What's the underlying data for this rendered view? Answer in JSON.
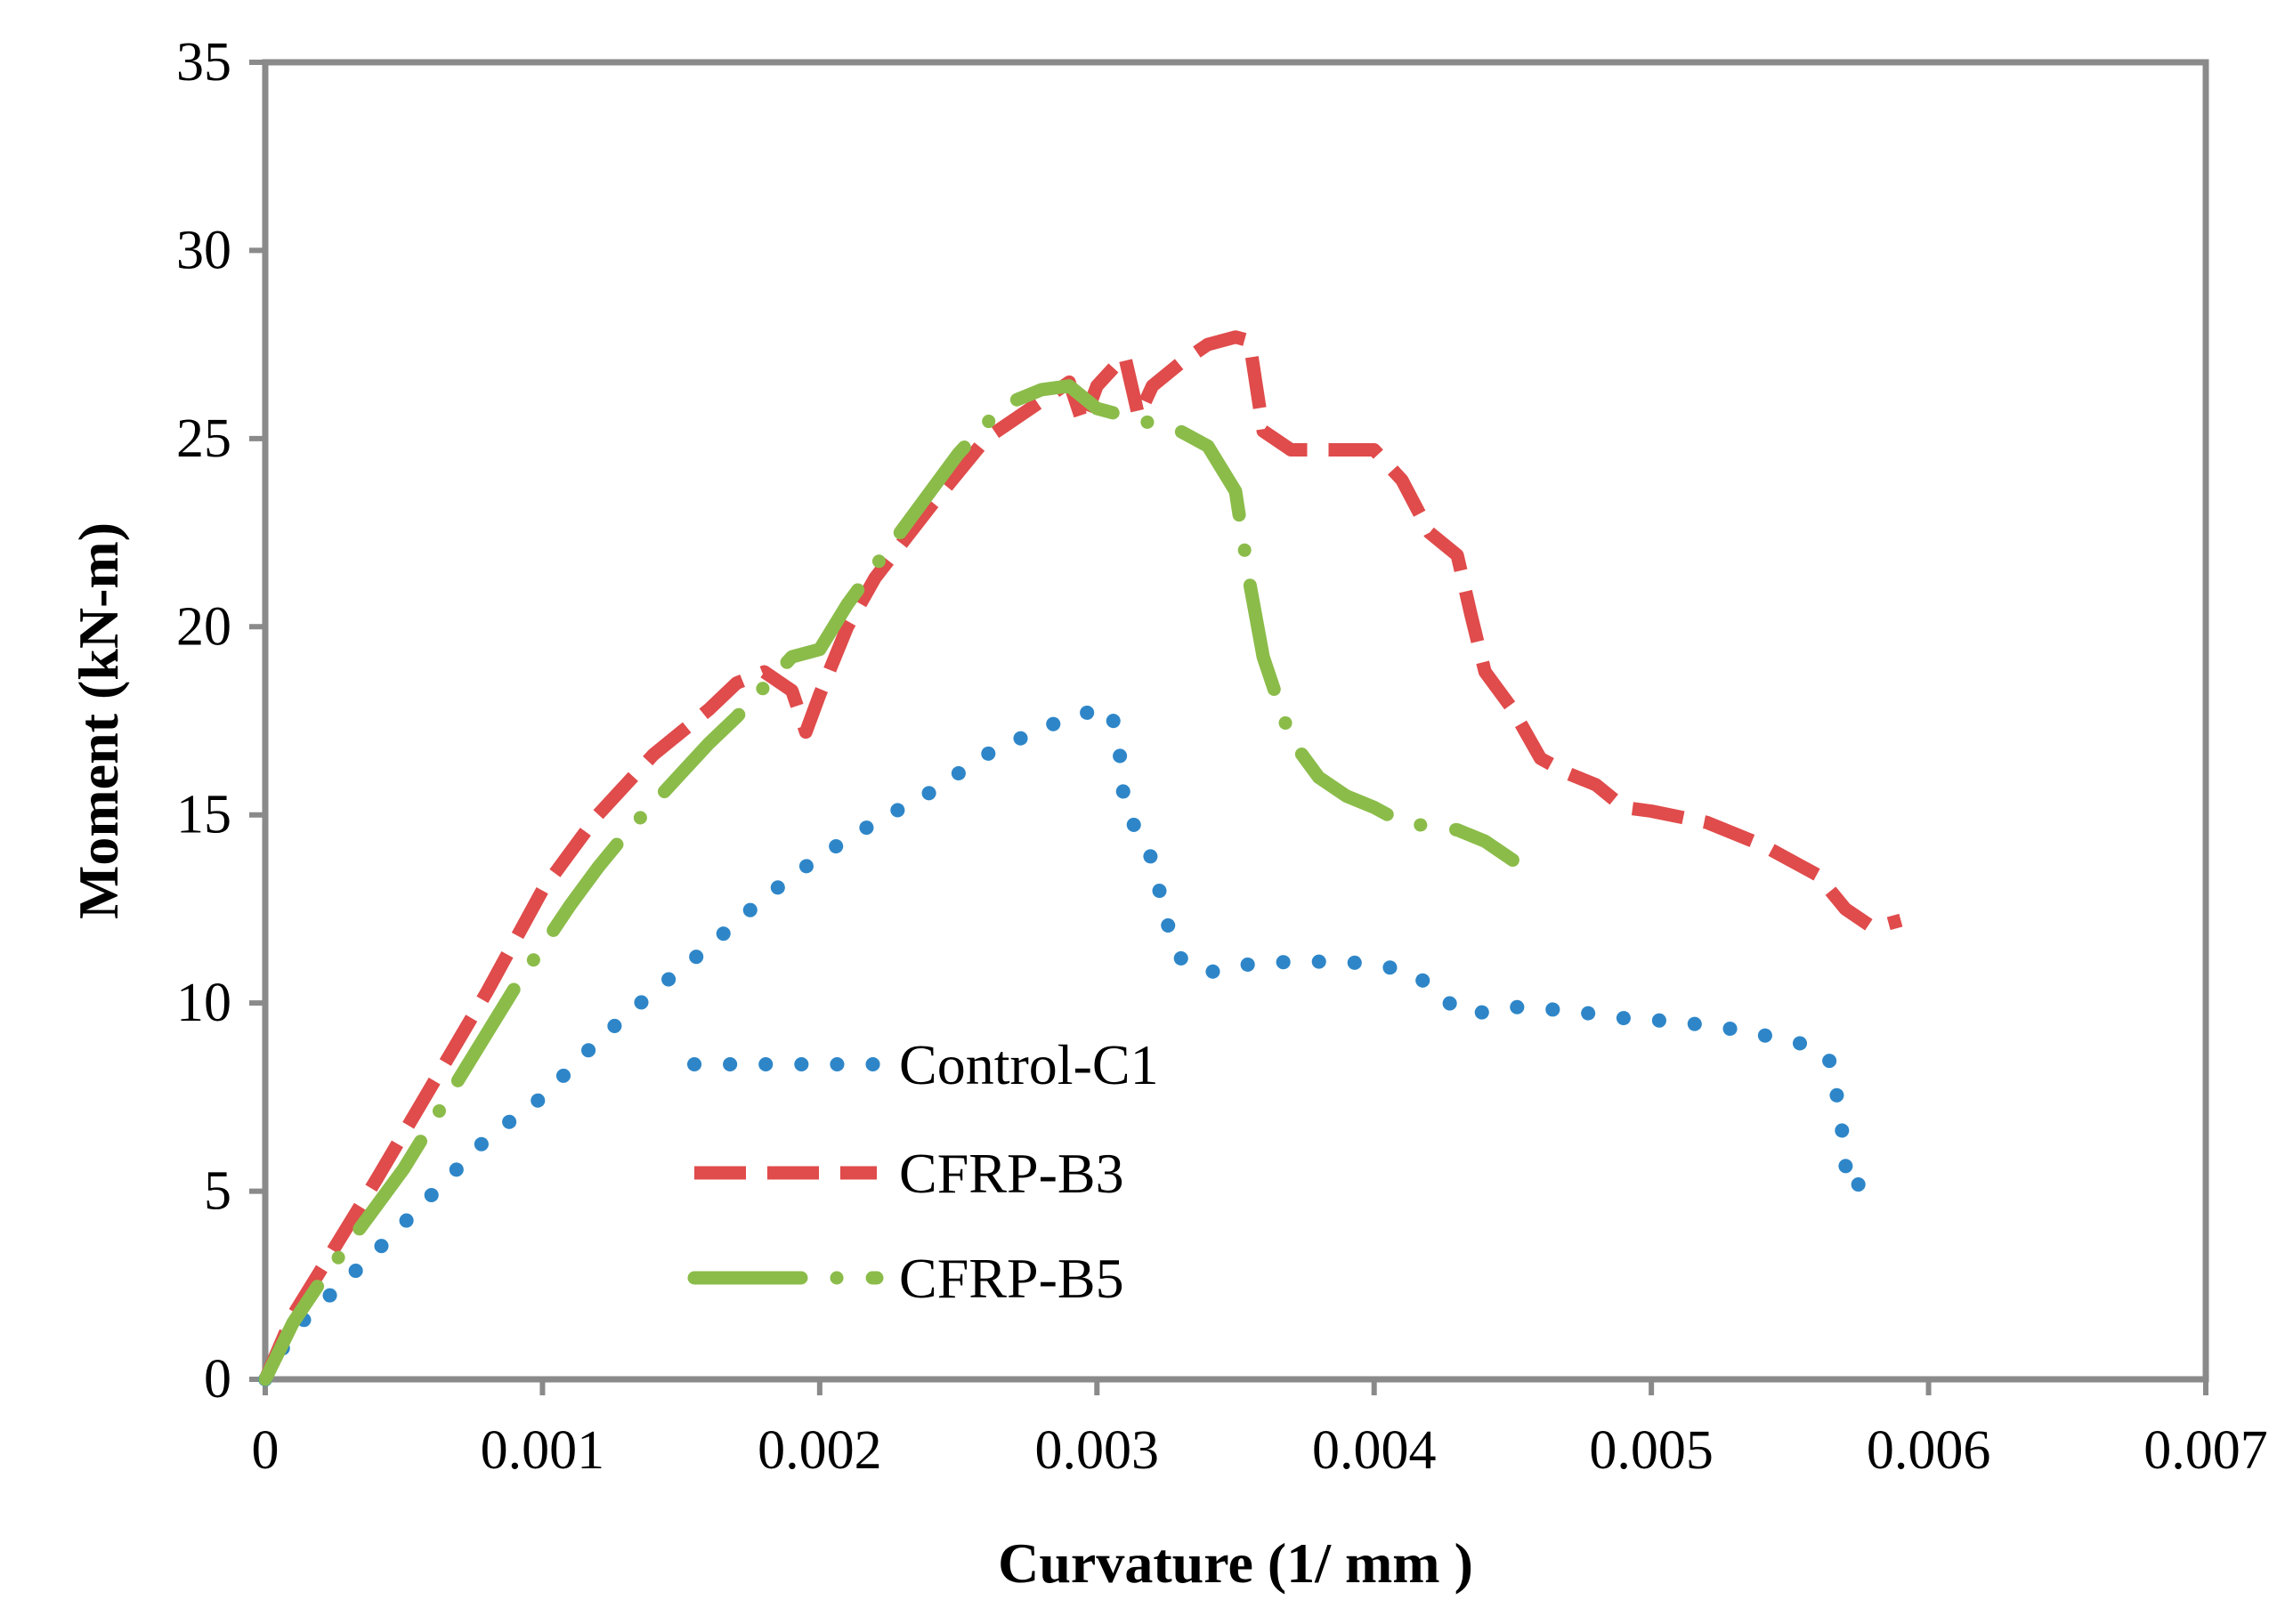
{
  "chart_data": {
    "type": "line",
    "title": "",
    "xlabel": "Curvature (1/ mm )",
    "ylabel": "Moment  (kN-m)",
    "xlim": [
      0,
      0.007
    ],
    "ylim": [
      0,
      35
    ],
    "xticks": [
      0,
      0.001,
      0.002,
      0.003,
      0.004,
      0.005,
      0.006,
      0.007
    ],
    "xtick_labels": [
      "0",
      "0.001",
      "0.002",
      "0.003",
      "0.004",
      "0.005",
      "0.006",
      "0.007"
    ],
    "yticks": [
      0,
      5,
      10,
      15,
      20,
      25,
      30,
      35
    ],
    "ytick_labels": [
      "0",
      "5",
      "10",
      "15",
      "20",
      "25",
      "30",
      "35"
    ],
    "grid": false,
    "legend_position": "bottom-left-center",
    "series": [
      {
        "name": "Control-C1",
        "color": "#2E86C8",
        "style": "dotted",
        "x": [
          0,
          0.0001,
          0.0002,
          0.0004,
          0.0006,
          0.0008,
          0.001,
          0.0012,
          0.0014,
          0.0016,
          0.0018,
          0.002,
          0.0022,
          0.0024,
          0.0026,
          0.0028,
          0.00295,
          0.00305,
          0.00308,
          0.0031,
          0.0032,
          0.00325,
          0.0033,
          0.0034,
          0.0035,
          0.0037,
          0.0039,
          0.0041,
          0.0042,
          0.0043,
          0.00435,
          0.0045,
          0.0047,
          0.0049,
          0.0051,
          0.0053,
          0.0055,
          0.0056,
          0.00565,
          0.00567,
          0.00569,
          0.0057,
          0.00572,
          0.00575,
          0.0057
        ],
        "y": [
          0,
          1.3,
          2,
          3.4,
          4.9,
          6.4,
          7.5,
          9,
          10.3,
          11.5,
          12.8,
          13.9,
          14.8,
          15.6,
          16.6,
          17.3,
          17.7,
          17.8,
          16.8,
          15.2,
          13.8,
          12.2,
          11.2,
          10.8,
          11,
          11.1,
          11.1,
          10.9,
          10.5,
          9.8,
          9.7,
          9.9,
          9.8,
          9.6,
          9.5,
          9.3,
          9.0,
          8.8,
          8.4,
          7.5,
          6.5,
          5.7,
          5.0,
          5.2,
          4.4
        ]
      },
      {
        "name": "CFRP-B3",
        "color": "#E04B4B",
        "style": "dashed",
        "x": [
          0,
          0.0001,
          0.0002,
          0.0004,
          0.0006,
          0.0008,
          0.001,
          0.0012,
          0.0014,
          0.0016,
          0.0017,
          0.0018,
          0.0019,
          0.00195,
          0.002,
          0.0021,
          0.0022,
          0.0024,
          0.0026,
          0.0028,
          0.0029,
          0.00295,
          0.003,
          0.0031,
          0.00315,
          0.0032,
          0.0033,
          0.0034,
          0.0035,
          0.00355,
          0.0036,
          0.0037,
          0.0038,
          0.0039,
          0.004,
          0.0041,
          0.0042,
          0.0043,
          0.00435,
          0.0044,
          0.0045,
          0.0046,
          0.0047,
          0.0048,
          0.0049,
          0.005,
          0.0052,
          0.0054,
          0.0056,
          0.0057,
          0.0058,
          0.0059
        ],
        "y": [
          0,
          1.7,
          2.9,
          5.3,
          7.8,
          10.3,
          13.0,
          15.0,
          16.6,
          17.8,
          18.5,
          18.8,
          18.3,
          17.2,
          18.2,
          20.0,
          21.3,
          23.2,
          25.0,
          26.0,
          26.5,
          25.4,
          26.4,
          27.2,
          25.6,
          26.4,
          27.0,
          27.5,
          27.7,
          27.6,
          25.2,
          24.7,
          24.7,
          24.7,
          24.7,
          23.9,
          22.5,
          21.9,
          20.3,
          18.8,
          17.8,
          16.5,
          16.1,
          15.8,
          15.2,
          15.1,
          14.8,
          14.2,
          13.4,
          12.5,
          12.0,
          12.2
        ]
      },
      {
        "name": "CFRP-B5",
        "color": "#8BBC4A",
        "style": "dash-dot",
        "x": [
          0,
          0.0001,
          0.0002,
          0.0003,
          0.0004,
          0.0005,
          0.0006,
          0.0007,
          0.0008,
          0.0009,
          0.001,
          0.0011,
          0.0012,
          0.0013,
          0.0014,
          0.0015,
          0.0016,
          0.0017,
          0.0018,
          0.0019,
          0.002,
          0.0021,
          0.0022,
          0.0023,
          0.0024,
          0.0025,
          0.0026,
          0.0027,
          0.0028,
          0.0029,
          0.003,
          0.0031,
          0.0032,
          0.0033,
          0.0034,
          0.0035,
          0.00355,
          0.0036,
          0.0037,
          0.0038,
          0.0039,
          0.004,
          0.0041,
          0.0042,
          0.0043,
          0.0044,
          0.0045
        ],
        "y": [
          0,
          1.5,
          2.6,
          3.6,
          4.6,
          5.6,
          6.8,
          8.0,
          9.2,
          10.4,
          11.5,
          12.6,
          13.6,
          14.5,
          15.3,
          16.1,
          16.9,
          17.6,
          18.4,
          19.2,
          19.4,
          20.6,
          21.6,
          22.6,
          23.6,
          24.6,
          25.4,
          26.0,
          26.3,
          26.4,
          25.8,
          25.6,
          25.4,
          25.2,
          24.8,
          23.6,
          21.2,
          19.2,
          17.0,
          16.0,
          15.5,
          15.2,
          14.8,
          14.7,
          14.6,
          14.3,
          13.8
        ]
      }
    ]
  }
}
